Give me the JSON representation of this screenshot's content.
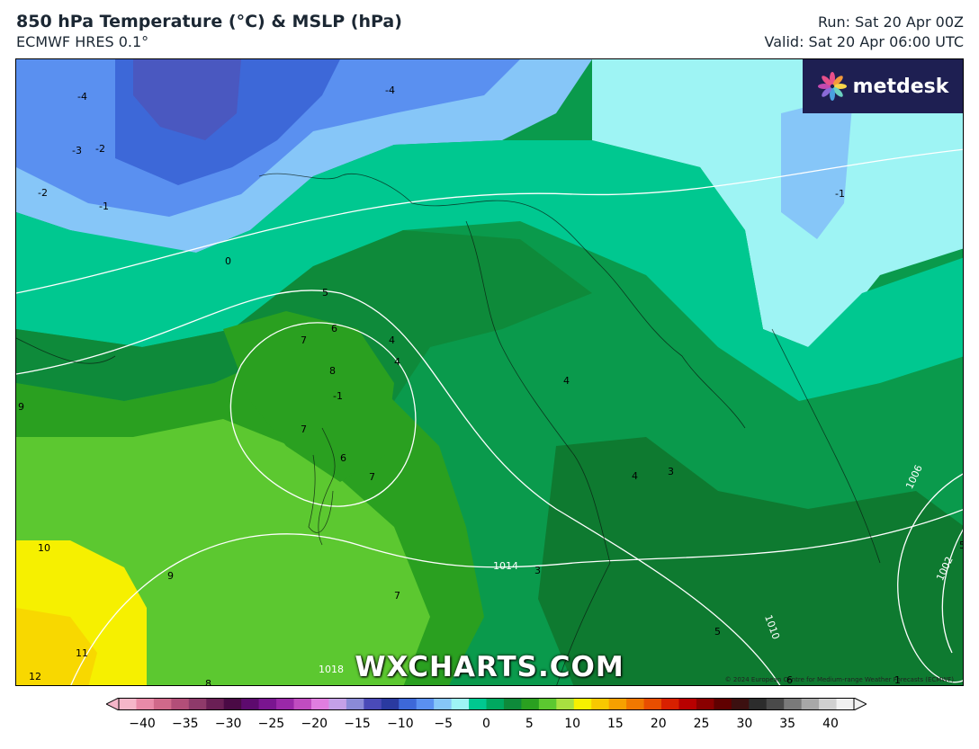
{
  "header": {
    "title": "850 hPa Temperature (°C) & MSLP (hPa)",
    "subtitle": "ECMWF HRES 0.1°",
    "run": "Run: Sat 20 Apr 00Z",
    "valid": "Valid: Sat 20 Apr 06:00 UTC"
  },
  "logo": {
    "text": "metdesk",
    "icon": "metdesk-flower-icon"
  },
  "watermark": "WXCHARTS.COM",
  "copyright": "© 2024 European Centre for Medium-range Weather Forecasts (ECMWF)",
  "temp_labels": [
    "-4",
    "-3",
    "-2",
    "-1",
    "-2",
    "0",
    "-4",
    "-1",
    "5",
    "6",
    "7",
    "4",
    "4",
    "8",
    "7",
    "6",
    "7",
    "9",
    "9",
    "10",
    "11",
    "12",
    "8",
    "7",
    "4",
    "3",
    "4",
    "5",
    "6",
    "3",
    "-1",
    "1",
    "5"
  ],
  "isobar_labels": [
    "1014",
    "1010",
    "1018",
    "1006",
    "1002"
  ],
  "colorbar": {
    "ticks": [
      "−40",
      "−35",
      "−30",
      "−25",
      "−20",
      "−15",
      "−10",
      "−5",
      "0",
      "5",
      "10",
      "15",
      "20",
      "25",
      "30",
      "35",
      "40"
    ],
    "colors": [
      "#f5b6c9",
      "#e88aa8",
      "#d0698a",
      "#b24e78",
      "#8e3a6a",
      "#6a1f55",
      "#4a0a45",
      "#5d0a6e",
      "#7a1590",
      "#9a28a8",
      "#c04cc0",
      "#e07ee0",
      "#c4a0e8",
      "#8a8ad8",
      "#4a4ab8",
      "#2a3aa0",
      "#3d68d8",
      "#5a90f0",
      "#86c6f8",
      "#9ef4f4",
      "#00c890",
      "#00a860",
      "#0e8a3a",
      "#2aa020",
      "#5cc830",
      "#a8e040",
      "#f6f000",
      "#f8c800",
      "#f6a000",
      "#f07800",
      "#e84e00",
      "#d82000",
      "#b80000",
      "#8a0000",
      "#600000",
      "#3c1010",
      "#2c2c2c",
      "#4a4a4a",
      "#7a7a7a",
      "#a8a8a8",
      "#d0d0d0",
      "#f0f0f0"
    ]
  }
}
